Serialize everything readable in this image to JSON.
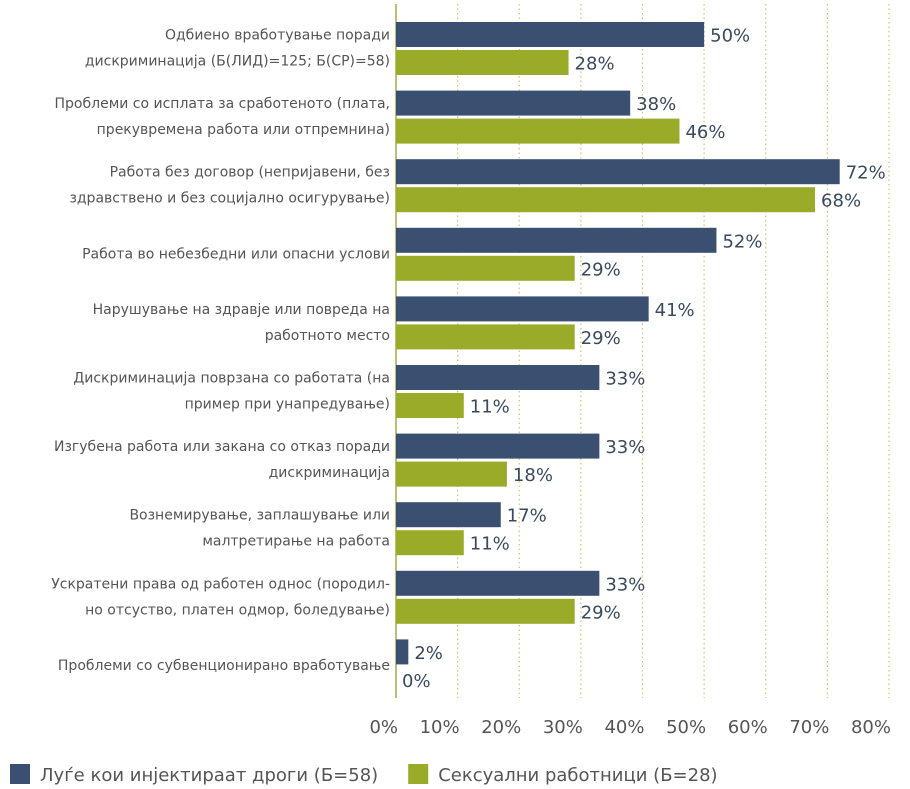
{
  "chart_data": {
    "type": "bar",
    "orientation": "horizontal",
    "categories": [
      [
        "Одбиено вработување поради",
        "дискриминација (Б(ЛИД)=125; Б(СР)=58)"
      ],
      [
        "Проблеми со исплата за сработеното (плата,",
        "прекувремена работа или отпремнина)"
      ],
      [
        "Работа без договор (непријавени, без",
        "здравствено и без социјално осигурување)"
      ],
      [
        "Работа во небезбедни или опасни услови"
      ],
      [
        "Нарушување на здравје или повреда на",
        "работното место"
      ],
      [
        "Дискриминација поврзана со работата (на",
        "пример при унапредување)"
      ],
      [
        "Изгубена работа или закана со отказ поради",
        "дискриминација"
      ],
      [
        "Вознемирување, заплашување или",
        "малтретирање на работа"
      ],
      [
        "Ускратени права од работен однос (породил-",
        "но отсуство, платен одмор, боледување)"
      ],
      [
        "Проблеми со субвенционирано вработување"
      ]
    ],
    "series": [
      {
        "name": "Луѓе кои инјектираат дроги (Б=58)",
        "color": "#3b5070",
        "values": [
          50,
          38,
          72,
          52,
          41,
          33,
          33,
          17,
          33,
          2
        ],
        "value_labels": [
          "50%",
          "38%",
          "72%",
          "52%",
          "41%",
          "33%",
          "33%",
          "17%",
          "33%",
          "2%"
        ]
      },
      {
        "name": "Сексуални работници (Б=28)",
        "color": "#9aab2a",
        "values": [
          28,
          46,
          68,
          29,
          29,
          11,
          18,
          11,
          29,
          0
        ],
        "value_labels": [
          "28%",
          "46%",
          "68%",
          "29%",
          "29%",
          "11%",
          "18%",
          "11%",
          "29%",
          "0%"
        ]
      }
    ],
    "xlim": [
      0,
      80
    ],
    "xticks": [
      {
        "value": 0,
        "label": "0%"
      },
      {
        "value": 10,
        "label": "10%"
      },
      {
        "value": 20,
        "label": "20%"
      },
      {
        "value": 30,
        "label": "30%"
      },
      {
        "value": 40,
        "label": "40%"
      },
      {
        "value": 50,
        "label": "50%"
      },
      {
        "value": 60,
        "label": "60%"
      },
      {
        "value": 70,
        "label": "70%"
      },
      {
        "value": 80,
        "label": "80%"
      }
    ],
    "grid": true,
    "legend": "bottom"
  }
}
